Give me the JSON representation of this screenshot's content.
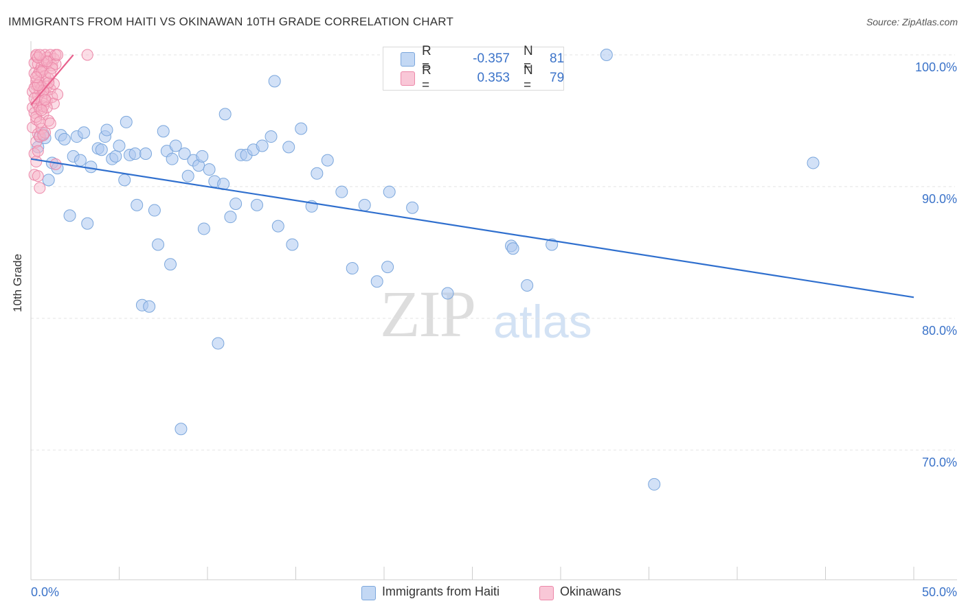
{
  "title": "IMMIGRANTS FROM HAITI VS OKINAWAN 10TH GRADE CORRELATION CHART",
  "source": "Source: ZipAtlas.com",
  "watermark": {
    "zip": "ZIP",
    "atlas": "atlas"
  },
  "legend": {
    "rows": [
      {
        "r_label": "R =",
        "r_value": "-0.357",
        "n_label": "N =",
        "n_value": "81"
      },
      {
        "r_label": "R =",
        "r_value": "0.353",
        "n_label": "N =",
        "n_value": "79"
      }
    ]
  },
  "colors": {
    "haiti_fill": "#adc9f0",
    "haiti_stroke": "#7aa6dc",
    "haiti_line": "#2f6fce",
    "okinawan_fill": "#f6b3c8",
    "okinawan_stroke": "#ec87a8",
    "okinawan_line": "#e8618d",
    "value_text": "#3b73c9",
    "grid": "#e3e3e3",
    "axis": "#cccccc"
  },
  "chart_data": {
    "type": "scatter",
    "title": "IMMIGRANTS FROM HAITI VS OKINAWAN 10TH GRADE CORRELATION CHART",
    "xlabel": "",
    "ylabel": "10th Grade",
    "xlim": [
      0,
      50
    ],
    "ylim": [
      60.5,
      101.5
    ],
    "x_tick_labels": [
      "0.0%",
      "50.0%"
    ],
    "y_tick_labels": [
      "100.0%",
      "90.0%",
      "80.0%",
      "70.0%"
    ],
    "y_ticks": [
      100,
      90,
      80,
      70
    ],
    "grid": true,
    "legend_position": "top-center",
    "series": [
      {
        "name": "Immigrants from Haiti",
        "r": -0.357,
        "n": 81,
        "trend": {
          "x": [
            0,
            50
          ],
          "y": [
            92.1,
            81.6
          ]
        },
        "points": [
          [
            0.4,
            93.0
          ],
          [
            0.5,
            93.8
          ],
          [
            0.8,
            93.7
          ],
          [
            1.0,
            90.5
          ],
          [
            1.2,
            91.8
          ],
          [
            1.5,
            91.4
          ],
          [
            1.7,
            93.9
          ],
          [
            1.9,
            93.6
          ],
          [
            2.2,
            87.8
          ],
          [
            2.4,
            92.3
          ],
          [
            2.6,
            93.8
          ],
          [
            2.8,
            92.0
          ],
          [
            3.0,
            94.1
          ],
          [
            3.2,
            87.2
          ],
          [
            3.4,
            91.5
          ],
          [
            3.8,
            92.9
          ],
          [
            4.0,
            92.8
          ],
          [
            4.2,
            93.8
          ],
          [
            4.3,
            94.3
          ],
          [
            4.6,
            92.1
          ],
          [
            4.8,
            92.3
          ],
          [
            5.0,
            93.1
          ],
          [
            5.3,
            90.5
          ],
          [
            5.4,
            94.9
          ],
          [
            5.6,
            92.4
          ],
          [
            5.9,
            92.5
          ],
          [
            6.0,
            88.6
          ],
          [
            6.3,
            81.0
          ],
          [
            6.5,
            92.5
          ],
          [
            6.7,
            80.9
          ],
          [
            7.0,
            88.2
          ],
          [
            7.2,
            85.6
          ],
          [
            7.5,
            94.2
          ],
          [
            7.7,
            92.7
          ],
          [
            7.9,
            84.1
          ],
          [
            8.0,
            92.1
          ],
          [
            8.2,
            93.1
          ],
          [
            8.5,
            71.6
          ],
          [
            8.7,
            92.5
          ],
          [
            8.9,
            90.8
          ],
          [
            9.2,
            92.0
          ],
          [
            9.5,
            91.6
          ],
          [
            9.7,
            92.3
          ],
          [
            9.8,
            86.8
          ],
          [
            10.1,
            91.3
          ],
          [
            10.4,
            90.4
          ],
          [
            10.6,
            78.1
          ],
          [
            10.9,
            90.2
          ],
          [
            11.0,
            95.5
          ],
          [
            11.3,
            87.7
          ],
          [
            11.6,
            88.7
          ],
          [
            11.9,
            92.4
          ],
          [
            12.2,
            92.4
          ],
          [
            12.6,
            92.8
          ],
          [
            12.8,
            88.6
          ],
          [
            13.1,
            93.1
          ],
          [
            13.6,
            93.8
          ],
          [
            13.8,
            98.0
          ],
          [
            14.0,
            87.0
          ],
          [
            14.6,
            93.0
          ],
          [
            14.8,
            85.6
          ],
          [
            15.3,
            94.4
          ],
          [
            15.9,
            88.5
          ],
          [
            16.2,
            91.0
          ],
          [
            16.8,
            92.0
          ],
          [
            17.6,
            89.6
          ],
          [
            18.2,
            83.8
          ],
          [
            18.9,
            88.6
          ],
          [
            19.6,
            82.8
          ],
          [
            20.2,
            83.9
          ],
          [
            20.3,
            89.6
          ],
          [
            21.6,
            88.4
          ],
          [
            23.6,
            81.9
          ],
          [
            27.2,
            85.5
          ],
          [
            27.3,
            85.3
          ],
          [
            28.1,
            82.5
          ],
          [
            29.5,
            85.6
          ],
          [
            32.6,
            100.0
          ],
          [
            35.3,
            67.4
          ],
          [
            44.3,
            91.8
          ],
          [
            0.7,
            94.0
          ]
        ]
      },
      {
        "name": "Okinawans",
        "r": 0.353,
        "n": 79,
        "trend": {
          "x": [
            0,
            2.4
          ],
          "y": [
            96.2,
            100.0
          ]
        },
        "points": [
          [
            0.1,
            96.0
          ],
          [
            0.1,
            97.2
          ],
          [
            0.1,
            94.5
          ],
          [
            0.2,
            92.5
          ],
          [
            0.2,
            90.9
          ],
          [
            0.2,
            98.6
          ],
          [
            0.2,
            99.4
          ],
          [
            0.2,
            95.6
          ],
          [
            0.3,
            97.7
          ],
          [
            0.3,
            93.4
          ],
          [
            0.3,
            96.4
          ],
          [
            0.3,
            91.9
          ],
          [
            0.3,
            98.0
          ],
          [
            0.3,
            95.1
          ],
          [
            0.3,
            99.9
          ],
          [
            0.4,
            96.9
          ],
          [
            0.4,
            92.7
          ],
          [
            0.4,
            94.0
          ],
          [
            0.4,
            90.8
          ],
          [
            0.4,
            98.5
          ],
          [
            0.4,
            96.2
          ],
          [
            0.4,
            99.3
          ],
          [
            0.5,
            97.3
          ],
          [
            0.5,
            89.9
          ],
          [
            0.5,
            95.9
          ],
          [
            0.5,
            93.8
          ],
          [
            0.5,
            98.8
          ],
          [
            0.5,
            97.9
          ],
          [
            0.6,
            96.4
          ],
          [
            0.6,
            99.1
          ],
          [
            0.6,
            94.4
          ],
          [
            0.6,
            97.5
          ],
          [
            0.7,
            98.9
          ],
          [
            0.7,
            95.5
          ],
          [
            0.7,
            96.1
          ],
          [
            0.7,
            99.6
          ],
          [
            0.8,
            97.1
          ],
          [
            0.8,
            98.4
          ],
          [
            0.8,
            94.1
          ],
          [
            0.8,
            100.0
          ],
          [
            0.9,
            97.6
          ],
          [
            0.9,
            99.8
          ],
          [
            0.9,
            96.5
          ],
          [
            1.0,
            98.2
          ],
          [
            1.0,
            99.5
          ],
          [
            1.0,
            95.0
          ],
          [
            1.1,
            97.4
          ],
          [
            1.1,
            100.0
          ],
          [
            1.1,
            94.8
          ],
          [
            1.2,
            99.2
          ],
          [
            1.2,
            96.8
          ],
          [
            1.3,
            99.7
          ],
          [
            1.3,
            97.8
          ],
          [
            1.3,
            96.3
          ],
          [
            1.4,
            100.0
          ],
          [
            1.4,
            99.3
          ],
          [
            1.4,
            91.7
          ],
          [
            1.5,
            97.0
          ],
          [
            1.5,
            100.0
          ],
          [
            3.2,
            100.0
          ],
          [
            0.2,
            97.5
          ],
          [
            0.3,
            100.0
          ],
          [
            0.4,
            99.8
          ],
          [
            0.6,
            98.7
          ],
          [
            0.7,
            97.3
          ],
          [
            0.9,
            96.0
          ],
          [
            1.0,
            97.9
          ],
          [
            1.2,
            99.0
          ],
          [
            0.2,
            96.7
          ],
          [
            0.3,
            95.3
          ],
          [
            0.5,
            94.9
          ],
          [
            0.8,
            96.6
          ],
          [
            1.1,
            98.6
          ],
          [
            0.4,
            97.7
          ],
          [
            0.6,
            95.8
          ],
          [
            0.9,
            99.5
          ],
          [
            0.3,
            98.3
          ],
          [
            0.5,
            100.0
          ],
          [
            0.7,
            93.9
          ]
        ]
      }
    ]
  }
}
